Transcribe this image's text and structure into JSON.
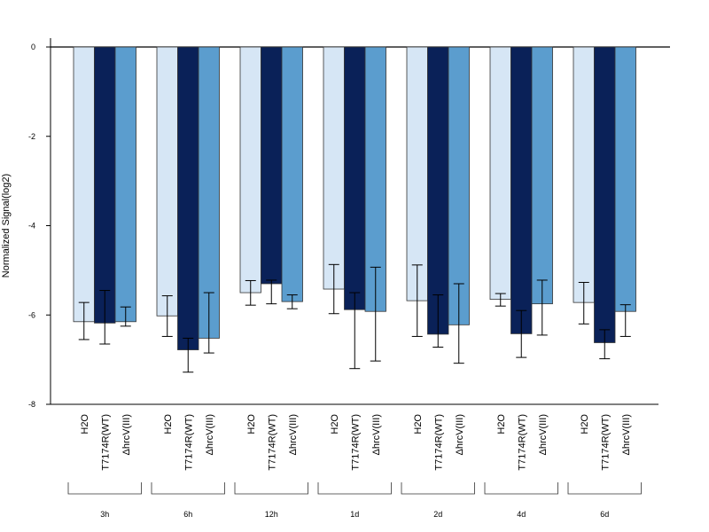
{
  "chart_data": {
    "type": "bar",
    "title": "",
    "xlabel": "",
    "ylabel": "Normalized Signal(log2)",
    "ylim": [
      -8,
      0
    ],
    "yticks": [
      0,
      -2,
      -4,
      -6,
      -8
    ],
    "grid": false,
    "legend": "none",
    "bar_labels": [
      "H2O",
      "T7174R(WT)",
      "ΔhrcV(III)"
    ],
    "colors": [
      "#d6e6f5",
      "#0a2158",
      "#5b9dce"
    ],
    "groups": [
      {
        "name": "3h",
        "values": [
          -6.15,
          -6.18,
          -6.15
        ],
        "err_low": [
          -6.55,
          -6.65,
          -6.25
        ],
        "err_high": [
          -5.72,
          -5.45,
          -5.82
        ]
      },
      {
        "name": "6h",
        "values": [
          -6.02,
          -6.78,
          -6.52
        ],
        "err_low": [
          -6.48,
          -7.28,
          -6.85
        ],
        "err_high": [
          -5.57,
          -6.52,
          -5.5
        ]
      },
      {
        "name": "12h",
        "values": [
          -5.5,
          -5.3,
          -5.7
        ],
        "err_low": [
          -5.78,
          -5.75,
          -5.86
        ],
        "err_high": [
          -5.23,
          -5.22,
          -5.55
        ]
      },
      {
        "name": "1d",
        "values": [
          -5.42,
          -5.88,
          -5.92
        ],
        "err_low": [
          -5.97,
          -7.2,
          -7.03
        ],
        "err_high": [
          -4.87,
          -5.5,
          -4.93
        ]
      },
      {
        "name": "2d",
        "values": [
          -5.68,
          -6.43,
          -6.22
        ],
        "err_low": [
          -6.48,
          -6.72,
          -7.08
        ],
        "err_high": [
          -4.88,
          -5.55,
          -5.3
        ]
      },
      {
        "name": "4d",
        "values": [
          -5.65,
          -6.42,
          -5.75
        ],
        "err_low": [
          -5.8,
          -6.95,
          -6.45
        ],
        "err_high": [
          -5.52,
          -5.9,
          -5.22
        ]
      },
      {
        "name": "6d",
        "values": [
          -5.72,
          -6.62,
          -5.92
        ],
        "err_low": [
          -6.2,
          -6.98,
          -6.48
        ],
        "err_high": [
          -5.27,
          -6.33,
          -5.77
        ]
      }
    ]
  }
}
